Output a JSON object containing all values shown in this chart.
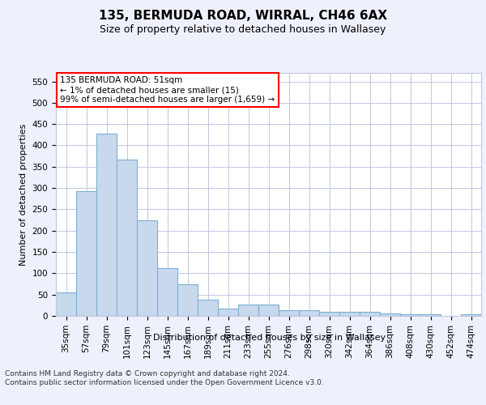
{
  "title": "135, BERMUDA ROAD, WIRRAL, CH46 6AX",
  "subtitle": "Size of property relative to detached houses in Wallasey",
  "xlabel": "Distribution of detached houses by size in Wallasey",
  "ylabel": "Number of detached properties",
  "categories": [
    "35sqm",
    "57sqm",
    "79sqm",
    "101sqm",
    "123sqm",
    "145sqm",
    "167sqm",
    "189sqm",
    "211sqm",
    "233sqm",
    "255sqm",
    "276sqm",
    "298sqm",
    "320sqm",
    "342sqm",
    "364sqm",
    "386sqm",
    "408sqm",
    "430sqm",
    "452sqm",
    "474sqm"
  ],
  "values": [
    55,
    292,
    428,
    367,
    225,
    113,
    75,
    38,
    17,
    27,
    27,
    14,
    14,
    10,
    10,
    10,
    5,
    4,
    4,
    0,
    4
  ],
  "bar_color": "#c8d9ee",
  "bar_edge_color": "#7aafd4",
  "ann_text_line1": "135 BERMUDA ROAD: 51sqm",
  "ann_text_line2": "← 1% of detached houses are smaller (15)",
  "ann_text_line3": "99% of semi-detached houses are larger (1,659) →",
  "ann_box_color": "white",
  "ann_edge_color": "red",
  "ylim": [
    0,
    570
  ],
  "yticks": [
    0,
    50,
    100,
    150,
    200,
    250,
    300,
    350,
    400,
    450,
    500,
    550
  ],
  "footer": "Contains HM Land Registry data © Crown copyright and database right 2024.\nContains public sector information licensed under the Open Government Licence v3.0.",
  "bg_color": "#eef1fb",
  "plot_bg_color": "#ffffff",
  "grid_color": "#c0c8de",
  "title_fontsize": 11,
  "subtitle_fontsize": 9,
  "ylabel_fontsize": 8,
  "tick_fontsize": 7.5,
  "footer_fontsize": 6.5
}
